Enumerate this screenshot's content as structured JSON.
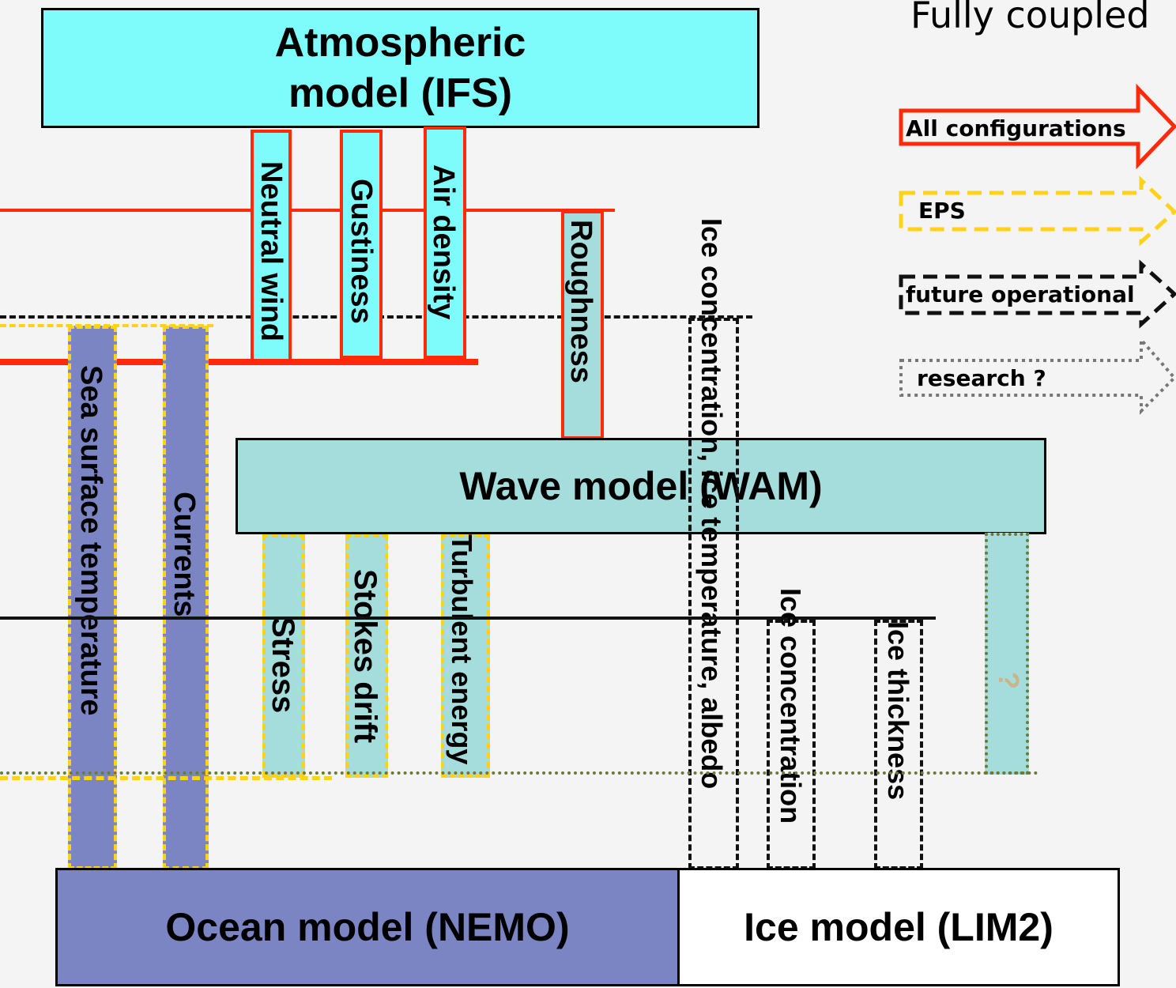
{
  "title": "Fully coupled",
  "models": {
    "atmosphere": "Atmospheric model (IFS)",
    "wave": "Wave model (WAM)",
    "ocean": "Ocean model (NEMO)",
    "ice": "Ice model (LIM2)"
  },
  "fluxes": {
    "neutral_wind": "Neutral wind",
    "gustiness": "Gustiness",
    "air_density": "Air density",
    "roughness": "Roughness",
    "sst": "Sea surface temperature",
    "currents": "Currents",
    "stress": "Stress",
    "stokes": "Stokes drift",
    "turbulent": "Turbulent energy",
    "ice_atm": "Ice concentration, ice temperature, albedo",
    "ice_conc": "Ice concentration",
    "ice_thick": "Ice thickness",
    "unknown": "?"
  },
  "legend": {
    "all": "All configurations",
    "eps": "EPS",
    "future": "future operational",
    "research": "research ?"
  },
  "colors": {
    "atmosphere": "#7efbfb",
    "wave": "#a5dcdc",
    "ocean": "#7b85c4",
    "ice": "#ffffff",
    "red": "#ff2a0a",
    "yellow": "#ffd21a",
    "dotted_green": "#6b7a3a"
  }
}
